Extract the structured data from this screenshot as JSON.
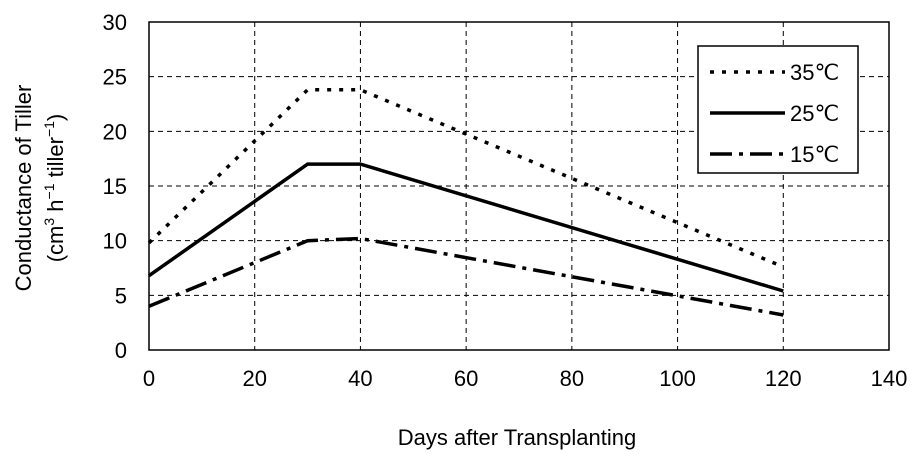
{
  "chart_data": {
    "type": "line",
    "title": "",
    "xlabel": "Days after Transplanting",
    "ylabel": {
      "line1": "Conductance of Tiller",
      "line2_part1": "(cm",
      "line2_sup1": "3",
      "line2_part2": " h",
      "line2_sup2": "−1",
      "line2_part3": " tiller",
      "line2_sup3": "−1",
      "line2_part4": ")"
    },
    "xlim": [
      0,
      140
    ],
    "ylim": [
      0,
      30
    ],
    "x_ticks": [
      "0",
      "20",
      "40",
      "60",
      "80",
      "100",
      "120",
      "140"
    ],
    "y_ticks": [
      "0",
      "5",
      "10",
      "15",
      "20",
      "25",
      "30"
    ],
    "grid": true,
    "legend_position": "top-right",
    "series": [
      {
        "name": "35℃",
        "style": "dotted",
        "x": [
          0,
          30,
          40,
          120
        ],
        "y": [
          9.8,
          23.8,
          23.8,
          7.6
        ]
      },
      {
        "name": "25℃",
        "style": "solid",
        "x": [
          0,
          30,
          40,
          120
        ],
        "y": [
          6.8,
          17.0,
          17.0,
          5.4
        ]
      },
      {
        "name": "15℃",
        "style": "dash-dot",
        "x": [
          0,
          30,
          40,
          120
        ],
        "y": [
          4.0,
          10.0,
          10.2,
          3.2
        ]
      }
    ]
  }
}
